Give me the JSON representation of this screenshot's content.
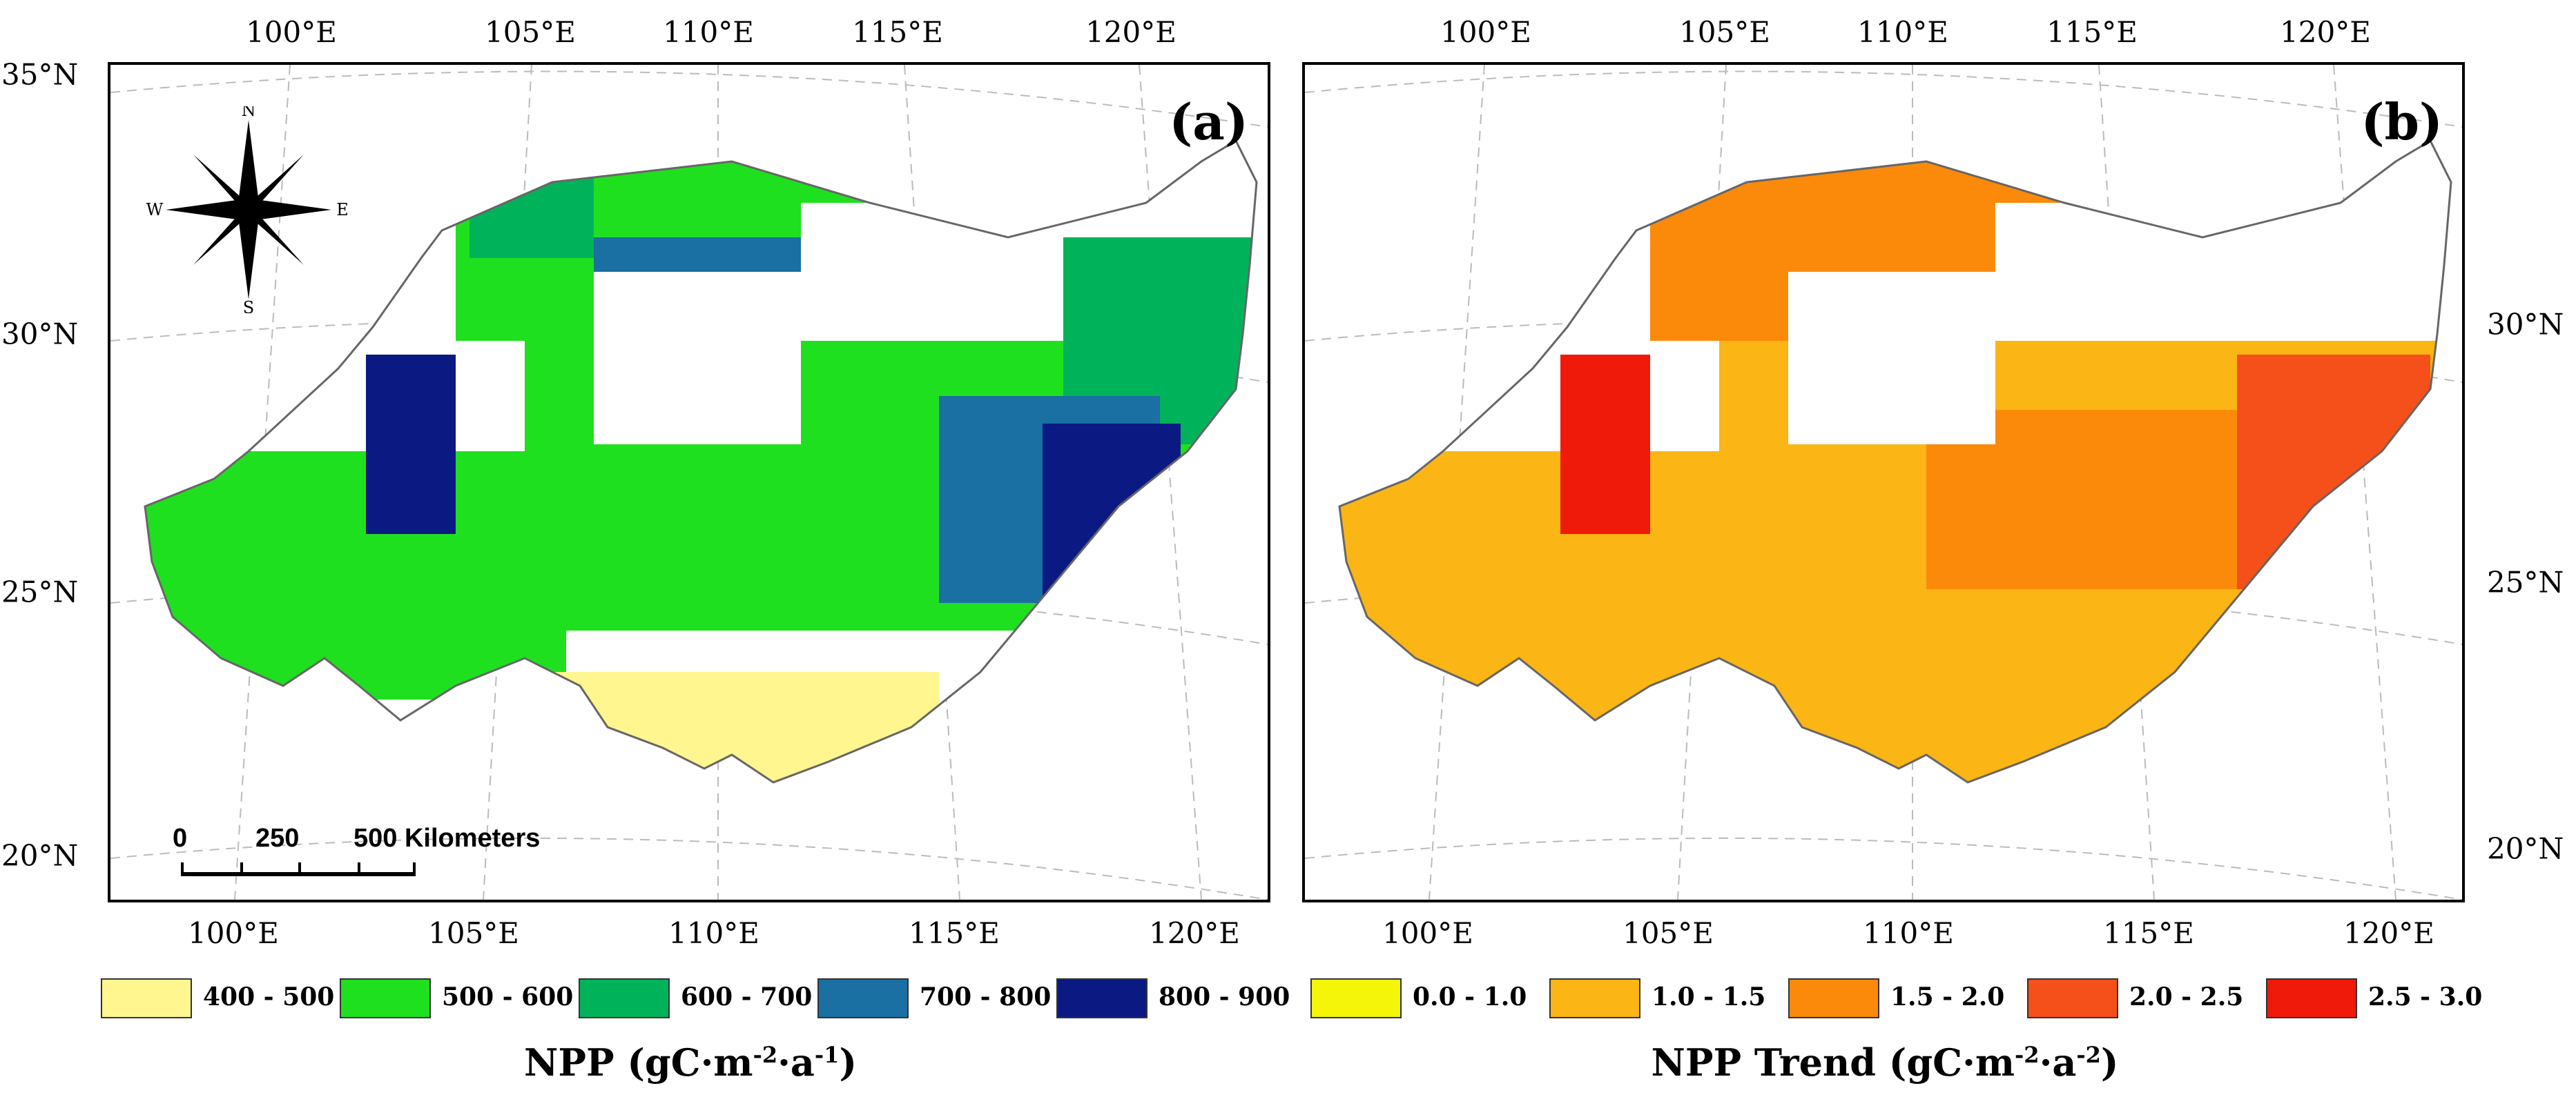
{
  "panels": {
    "a": {
      "label": "(a)"
    },
    "b": {
      "label": "(b)"
    }
  },
  "axes": {
    "lon_ticks_top_a": [
      "100°E",
      "105°E",
      "110°E",
      "115°E",
      "120°E"
    ],
    "lon_ticks_top_b": [
      "100°E",
      "105°E",
      "110°E",
      "115°E",
      "120°E"
    ],
    "lon_ticks_bottom_a": [
      "100°E",
      "105°E",
      "110°E",
      "115°E",
      "120°E"
    ],
    "lon_ticks_bottom_b": [
      "100°E",
      "105°E",
      "110°E",
      "115°E",
      "120°E"
    ],
    "lat_ticks_left": [
      "35°N",
      "30°N",
      "25°N",
      "20°N"
    ],
    "lat_ticks_right": [
      "30°N",
      "25°N",
      "20°N"
    ]
  },
  "scalebar": {
    "l0": "0",
    "l1": "250",
    "l2": "500 Kilometers"
  },
  "compass": {
    "n": "N",
    "s": "S",
    "e": "E",
    "w": "W"
  },
  "legend_a": {
    "title_main": "NPP (gC·m",
    "title_sup1": "-2",
    "title_mid": "·a",
    "title_sup2": "-1",
    "title_end": ")",
    "classes": [
      {
        "label": "400 - 500",
        "color": "#fff68f"
      },
      {
        "label": "500 - 600",
        "color": "#1fe01f"
      },
      {
        "label": "600 - 700",
        "color": "#00b35a"
      },
      {
        "label": "700 - 800",
        "color": "#1a6fa3"
      },
      {
        "label": "800 - 900",
        "color": "#0a1a82"
      }
    ]
  },
  "legend_b": {
    "title_main": "NPP Trend (gC·m",
    "title_sup1": "-2",
    "title_mid": "·a",
    "title_sup2": "-2",
    "title_end": ")",
    "classes": [
      {
        "label": "0.0 - 1.0",
        "color": "#f5f50a"
      },
      {
        "label": "1.0 - 1.5",
        "color": "#fbb515"
      },
      {
        "label": "1.5 - 2.0",
        "color": "#fb8a0a"
      },
      {
        "label": "2.0 - 2.5",
        "color": "#f5501a"
      },
      {
        "label": "2.5 - 3.0",
        "color": "#f01a0a"
      }
    ]
  }
}
